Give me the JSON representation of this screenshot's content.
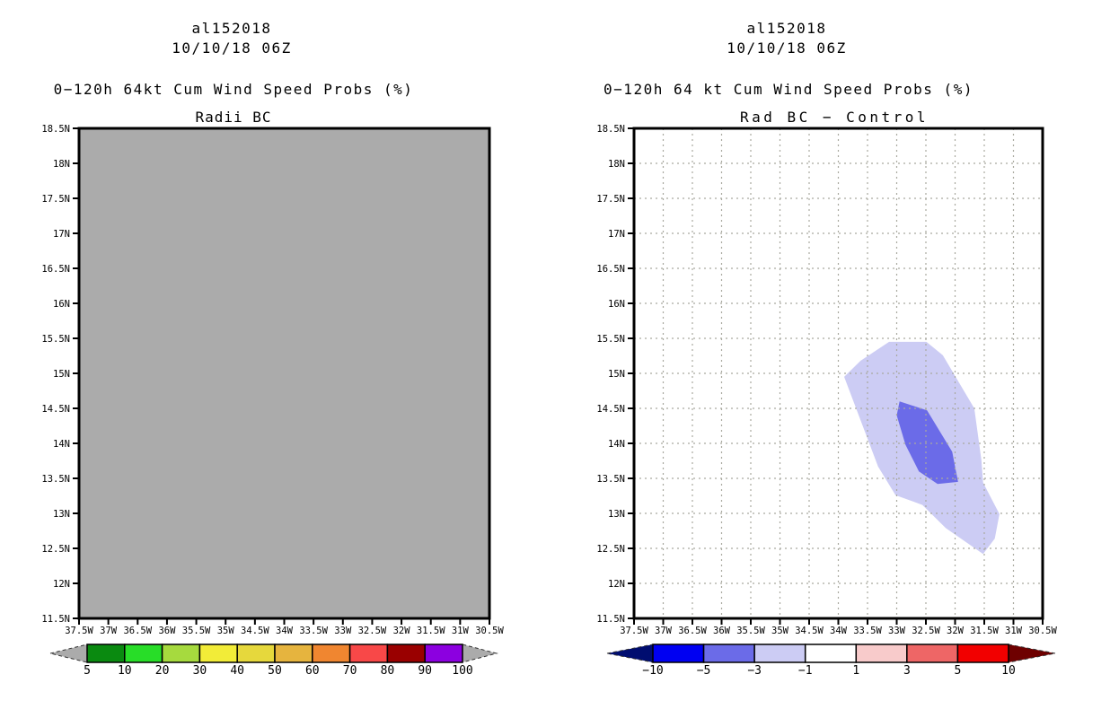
{
  "page": {
    "background": "#ffffff"
  },
  "chart_data": [
    {
      "type": "area",
      "panel": "left",
      "title": "al152018",
      "datetime": "10/10/18 06Z",
      "heading": "0−120h 64kt Cum Wind Speed Probs (%)",
      "variant": "Radii BC",
      "x_axis": {
        "ticks": [
          "37.5W",
          "37W",
          "36.5W",
          "36W",
          "35.5W",
          "35W",
          "34.5W",
          "34W",
          "33.5W",
          "33W",
          "32.5W",
          "32W",
          "31.5W",
          "31W",
          "30.5W"
        ],
        "range_lonW": [
          37.5,
          30.5
        ]
      },
      "y_axis": {
        "ticks": [
          "18.5N",
          "18N",
          "17.5N",
          "17N",
          "16.5N",
          "16N",
          "15.5N",
          "15N",
          "14.5N",
          "14N",
          "13.5N",
          "13N",
          "12.5N",
          "12N",
          "11.5N"
        ],
        "range_latN": [
          11.5,
          18.5
        ]
      },
      "grid": false,
      "grid_color": "#a9a99f",
      "map_fill": "#ababab",
      "frame_color": "#000000",
      "regions": [],
      "note": "uniform gray field, no probability contours drawn",
      "colorbar": {
        "labels": [
          "5",
          "10",
          "20",
          "30",
          "40",
          "50",
          "60",
          "70",
          "80",
          "90",
          "100"
        ],
        "segment_colors": [
          "#0a8a10",
          "#28dd28",
          "#a6da3e",
          "#f2ec38",
          "#e6d83c",
          "#e6b43e",
          "#f08630",
          "#f84848",
          "#9a0000",
          "#8c00e0"
        ],
        "left_arrow_color": "#ababab",
        "right_arrow_color": "#ababab"
      }
    },
    {
      "type": "area",
      "panel": "right",
      "title": "al152018",
      "datetime": "10/10/18 06Z",
      "heading": "0−120h 64 kt Cum Wind Speed Probs (%)",
      "variant": "Rad BC − Control",
      "x_axis": {
        "ticks": [
          "37.5W",
          "37W",
          "36.5W",
          "36W",
          "35.5W",
          "35W",
          "34.5W",
          "34W",
          "33.5W",
          "33W",
          "32.5W",
          "32W",
          "31.5W",
          "31W",
          "30.5W"
        ],
        "range_lonW": [
          37.5,
          30.5
        ]
      },
      "y_axis": {
        "ticks": [
          "18.5N",
          "18N",
          "17.5N",
          "17N",
          "16.5N",
          "16N",
          "15.5N",
          "15N",
          "14.5N",
          "14N",
          "13.5N",
          "13N",
          "12.5N",
          "12N",
          "11.5N"
        ],
        "range_latN": [
          11.5,
          18.5
        ]
      },
      "grid": true,
      "grid_color": "#a9a99f",
      "map_fill": "#ffffff",
      "frame_color": "#000000",
      "regions": [
        {
          "band": "-3 to -1",
          "color": "#ccccf4",
          "points_lonW_latN": [
            [
              33.13,
              15.45
            ],
            [
              32.49,
              15.45
            ],
            [
              32.21,
              15.26
            ],
            [
              31.67,
              14.5
            ],
            [
              31.55,
              13.76
            ],
            [
              31.52,
              13.44
            ],
            [
              31.24,
              12.99
            ],
            [
              31.32,
              12.64
            ],
            [
              31.52,
              12.42
            ],
            [
              32.16,
              12.79
            ],
            [
              32.56,
              13.12
            ],
            [
              33.02,
              13.26
            ],
            [
              33.32,
              13.67
            ],
            [
              33.9,
              14.95
            ],
            [
              33.62,
              15.18
            ]
          ]
        },
        {
          "band": "-5 to -3",
          "color": "#6b6be8",
          "points_lonW_latN": [
            [
              32.95,
              14.6
            ],
            [
              32.48,
              14.47
            ],
            [
              32.05,
              13.88
            ],
            [
              31.95,
              13.45
            ],
            [
              32.3,
              13.42
            ],
            [
              32.62,
              13.6
            ],
            [
              32.85,
              13.98
            ],
            [
              33.0,
              14.4
            ]
          ]
        }
      ],
      "colorbar": {
        "labels": [
          "−10",
          "−5",
          "−3",
          "−1",
          "1",
          "3",
          "5",
          "10"
        ],
        "segment_colors": [
          "#0000f2",
          "#6b6be8",
          "#ccccf4",
          "#ffffff",
          "#f8cbcb",
          "#ee6666",
          "#f20000"
        ],
        "left_arrow_color": "#000d70",
        "right_arrow_color": "#6e0000"
      }
    }
  ]
}
